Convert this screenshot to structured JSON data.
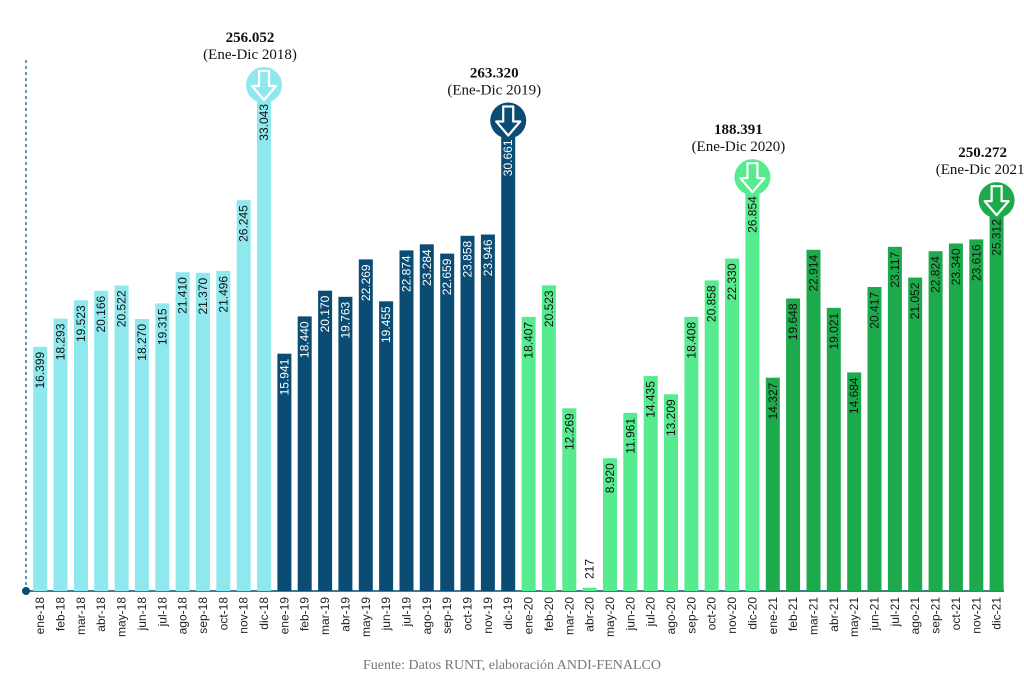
{
  "chart_data": {
    "type": "bar",
    "ylim": [
      0,
      36000
    ],
    "colors": {
      "2018": "#8EE8EE",
      "2019": "#0B4C75",
      "2020": "#55EB8E",
      "2021": "#1DAA4C"
    },
    "label_colors": {
      "2018": "#111111",
      "2019": "#ffffff",
      "2020": "#111111",
      "2021": "#111111"
    },
    "categories": [
      "ene-18",
      "feb-18",
      "mar-18",
      "abr-18",
      "may-18",
      "jun-18",
      "jul-18",
      "ago-18",
      "sep-18",
      "oct-18",
      "nov-18",
      "dic-18",
      "ene-19",
      "feb-19",
      "mar-19",
      "abr-19",
      "may-19",
      "jun-19",
      "jul-19",
      "ago-19",
      "sep-19",
      "oct-19",
      "nov-19",
      "dic-19",
      "ene-20",
      "feb-20",
      "mar-20",
      "abr-20",
      "may-20",
      "jun-20",
      "jul-20",
      "ago-20",
      "sep-20",
      "oct-20",
      "nov-20",
      "dic-20",
      "ene-21",
      "feb-21",
      "mar-21",
      "abr-21",
      "may-21",
      "jun-21",
      "jul-21",
      "ago-21",
      "sep-21",
      "oct-21",
      "nov-21",
      "dic-21"
    ],
    "values": [
      16399,
      18293,
      19523,
      20166,
      20522,
      18270,
      19315,
      21410,
      21370,
      21496,
      26245,
      33043,
      15941,
      18440,
      20170,
      19763,
      22269,
      19455,
      22874,
      23284,
      22659,
      23858,
      23946,
      30661,
      18407,
      20523,
      12269,
      217,
      8920,
      11961,
      14435,
      13209,
      18408,
      20858,
      22330,
      26854,
      14327,
      19648,
      22914,
      19021,
      14684,
      20417,
      23117,
      21052,
      22824,
      23340,
      23616,
      25312
    ],
    "value_labels": [
      "16.399",
      "18.293",
      "19.523",
      "20.166",
      "20.522",
      "18.270",
      "19.315",
      "21.410",
      "21.370",
      "21.496",
      "26.245",
      "33.043",
      "15.941",
      "18.440",
      "20.170",
      "19.763",
      "22.269",
      "19.455",
      "22.874",
      "23.284",
      "22.659",
      "23.858",
      "23.946",
      "30.661",
      "18.407",
      "20.523",
      "12.269",
      "217",
      "8.920",
      "11.961",
      "14.435",
      "13.209",
      "18.408",
      "20.858",
      "22.330",
      "26.854",
      "14.327",
      "19.648",
      "22.914",
      "19.021",
      "14.684",
      "20.417",
      "23.117",
      "21.052",
      "22.824",
      "23.340",
      "23.616",
      "25.312"
    ],
    "annotations": [
      {
        "year": "2018",
        "total": "256.052",
        "range": "(Ene-Dic 2018)",
        "color": "#8EE8EE"
      },
      {
        "year": "2019",
        "total": "263.320",
        "range": "(Ene-Dic 2019)",
        "color": "#0B4C75"
      },
      {
        "year": "2020",
        "total": "188.391",
        "range": "(Ene-Dic 2020)",
        "color": "#55EB8E"
      },
      {
        "year": "2021",
        "total": "250.272",
        "range": "(Ene-Dic 2021)",
        "color": "#1DAA4C"
      }
    ],
    "source": "Fuente: Datos RUNT, elaboración ANDI-FENALCO"
  }
}
